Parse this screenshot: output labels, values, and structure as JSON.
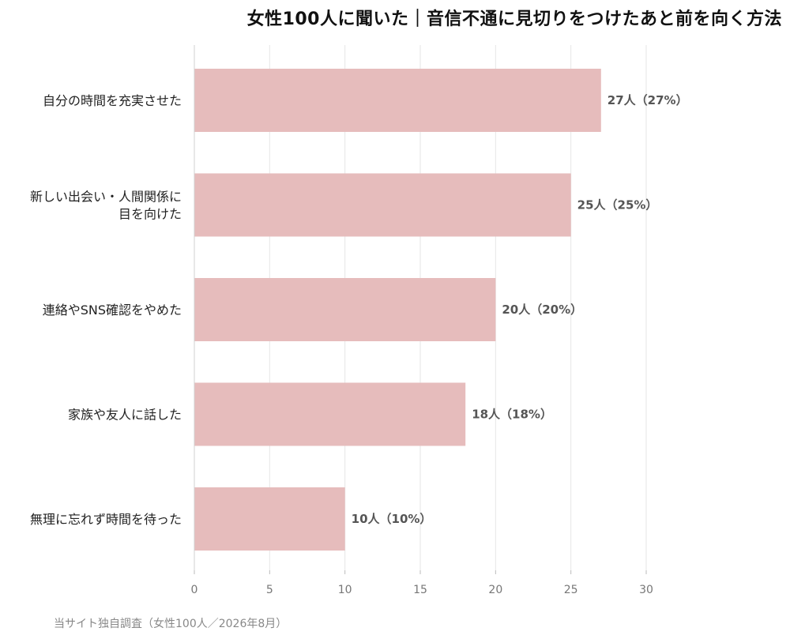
{
  "chart_data": {
    "type": "bar",
    "orientation": "horizontal",
    "title": "女性100人に聞いた｜音信不通に見切りをつけたあと前を向く方法",
    "categories": [
      [
        "自分の時間を充実させた"
      ],
      [
        "新しい出会い・人間関係に",
        "目を向けた"
      ],
      [
        "連絡やSNS確認をやめた"
      ],
      [
        "家族や友人に話した"
      ],
      [
        "無理に忘れず時間を待った"
      ]
    ],
    "values": [
      27,
      25,
      20,
      18,
      10
    ],
    "data_labels": [
      "27人（27%）",
      "25人（25%）",
      "20人（20%）",
      "18人（18%）",
      "10人（10%）"
    ],
    "xlim": [
      0,
      30
    ],
    "x_ticks": [
      0,
      5,
      10,
      15,
      20,
      25,
      30
    ],
    "grid": true,
    "bar_color": "#e6bcbc",
    "grid_color": "#e6e6e6",
    "xlabel": "",
    "ylabel": ""
  },
  "source_note": "当サイト独自調査（女性100人／2026年8月）"
}
